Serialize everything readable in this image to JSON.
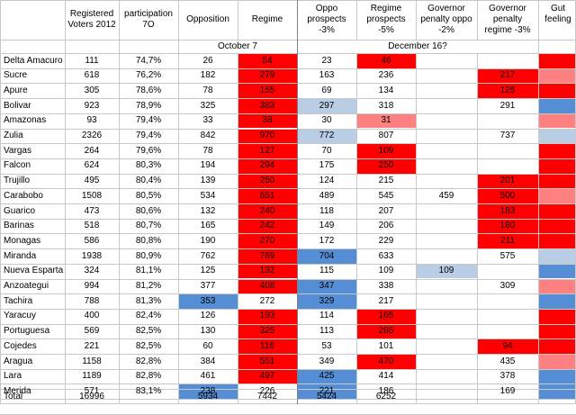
{
  "header": {
    "registered": "Registered Voters 2012",
    "participation": "participation 7O",
    "opposition": "Opposition",
    "regime": "Regime",
    "oppo_prospects": "Oppo prospects -3%",
    "regime_prospects": "Regime prospects -5%",
    "gov_penalty_oppo": "Governor penalty oppo -2%",
    "gov_penalty_regime": "Governor penalty regime -3%",
    "gut_feeling": "Gut feeling",
    "date_oct": "October 7",
    "date_dec": "December 16?"
  },
  "colors": {
    "red": "#ff0000",
    "light_red": "#ff8080",
    "blue": "#558ed5",
    "light_blue": "#b9cde5",
    "grid": "#c8c8c8"
  },
  "rows": [
    {
      "state": "Delta Amacuro",
      "reg": "111",
      "part": "74,7%",
      "opp": "26",
      "reg7": "54",
      "oppo3": "23",
      "regime5": "46",
      "gov_opp": "",
      "gov_reg": "",
      "cOpp": "",
      "cReg7": "red",
      "cOppo3": "",
      "cRegime5": "red",
      "cGovOpp": "",
      "cGovReg": "",
      "cGut": "red"
    },
    {
      "state": "Sucre",
      "reg": "618",
      "part": "76,2%",
      "opp": "182",
      "reg7": "279",
      "oppo3": "163",
      "regime5": "236",
      "gov_opp": "",
      "gov_reg": "217",
      "cOpp": "",
      "cReg7": "red",
      "cOppo3": "",
      "cRegime5": "",
      "cGovOpp": "",
      "cGovReg": "red",
      "cGut": "light_red"
    },
    {
      "state": "Apure",
      "reg": "305",
      "part": "78,6%",
      "opp": "78",
      "reg7": "155",
      "oppo3": "69",
      "regime5": "134",
      "gov_opp": "",
      "gov_reg": "125",
      "cOpp": "",
      "cReg7": "red",
      "cOppo3": "",
      "cRegime5": "",
      "cGovOpp": "",
      "cGovReg": "red",
      "cGut": "red"
    },
    {
      "state": "Bolivar",
      "reg": "923",
      "part": "78,9%",
      "opp": "325",
      "reg7": "383",
      "oppo3": "297",
      "regime5": "318",
      "gov_opp": "",
      "gov_reg": "291",
      "cOpp": "",
      "cReg7": "red",
      "cOppo3": "light_blue",
      "cRegime5": "",
      "cGovOpp": "",
      "cGovReg": "",
      "cGut": "blue"
    },
    {
      "state": "Amazonas",
      "reg": "93",
      "part": "79,4%",
      "opp": "33",
      "reg7": "38",
      "oppo3": "30",
      "regime5": "31",
      "gov_opp": "",
      "gov_reg": "",
      "cOpp": "",
      "cReg7": "red",
      "cOppo3": "",
      "cRegime5": "light_red",
      "cGovOpp": "",
      "cGovReg": "",
      "cGut": "light_red"
    },
    {
      "state": "Zulia",
      "reg": "2326",
      "part": "79,4%",
      "opp": "842",
      "reg7": "970",
      "oppo3": "772",
      "regime5": "807",
      "gov_opp": "",
      "gov_reg": "737",
      "cOpp": "",
      "cReg7": "red",
      "cOppo3": "light_blue",
      "cRegime5": "",
      "cGovOpp": "",
      "cGovReg": "",
      "cGut": "light_blue"
    },
    {
      "state": "Vargas",
      "reg": "264",
      "part": "79,6%",
      "opp": "78",
      "reg7": "127",
      "oppo3": "70",
      "regime5": "109",
      "gov_opp": "",
      "gov_reg": "",
      "cOpp": "",
      "cReg7": "red",
      "cOppo3": "",
      "cRegime5": "red",
      "cGovOpp": "",
      "cGovReg": "",
      "cGut": "red"
    },
    {
      "state": "Falcon",
      "reg": "624",
      "part": "80,3%",
      "opp": "194",
      "reg7": "294",
      "oppo3": "175",
      "regime5": "250",
      "gov_opp": "",
      "gov_reg": "",
      "cOpp": "",
      "cReg7": "red",
      "cOppo3": "",
      "cRegime5": "red",
      "cGovOpp": "",
      "cGovReg": "",
      "cGut": "red"
    },
    {
      "state": "Trujillo",
      "reg": "495",
      "part": "80,4%",
      "opp": "139",
      "reg7": "250",
      "oppo3": "124",
      "regime5": "215",
      "gov_opp": "",
      "gov_reg": "201",
      "cOpp": "",
      "cReg7": "red",
      "cOppo3": "",
      "cRegime5": "",
      "cGovOpp": "",
      "cGovReg": "red",
      "cGut": "red"
    },
    {
      "state": "Carabobo",
      "reg": "1508",
      "part": "80,5%",
      "opp": "534",
      "reg7": "651",
      "oppo3": "489",
      "regime5": "545",
      "gov_opp": "459",
      "gov_reg": "500",
      "cOpp": "",
      "cReg7": "red",
      "cOppo3": "",
      "cRegime5": "",
      "cGovOpp": "",
      "cGovReg": "red",
      "cGut": "light_red"
    },
    {
      "state": "Guarico",
      "reg": "473",
      "part": "80,6%",
      "opp": "132",
      "reg7": "240",
      "oppo3": "118",
      "regime5": "207",
      "gov_opp": "",
      "gov_reg": "183",
      "cOpp": "",
      "cReg7": "red",
      "cOppo3": "",
      "cRegime5": "",
      "cGovOpp": "",
      "cGovReg": "red",
      "cGut": "red"
    },
    {
      "state": "Barinas",
      "reg": "518",
      "part": "80,7%",
      "opp": "165",
      "reg7": "242",
      "oppo3": "149",
      "regime5": "206",
      "gov_opp": "",
      "gov_reg": "180",
      "cOpp": "",
      "cReg7": "red",
      "cOppo3": "",
      "cRegime5": "",
      "cGovOpp": "",
      "cGovReg": "red",
      "cGut": "red"
    },
    {
      "state": "Monagas",
      "reg": "586",
      "part": "80,8%",
      "opp": "190",
      "reg7": "270",
      "oppo3": "172",
      "regime5": "229",
      "gov_opp": "",
      "gov_reg": "211",
      "cOpp": "",
      "cReg7": "red",
      "cOppo3": "",
      "cRegime5": "",
      "cGovOpp": "",
      "cGovReg": "red",
      "cGut": "red"
    },
    {
      "state": "Miranda",
      "reg": "1938",
      "part": "80,9%",
      "opp": "762",
      "reg7": "769",
      "oppo3": "704",
      "regime5": "633",
      "gov_opp": "",
      "gov_reg": "575",
      "cOpp": "",
      "cReg7": "red",
      "cOppo3": "blue",
      "cRegime5": "",
      "cGovOpp": "",
      "cGovReg": "",
      "cGut": "light_blue"
    },
    {
      "state": "Nueva Esparta",
      "reg": "324",
      "part": "81,1%",
      "opp": "125",
      "reg7": "132",
      "oppo3": "115",
      "regime5": "109",
      "gov_opp": "109",
      "gov_reg": "",
      "cOpp": "",
      "cReg7": "red",
      "cOppo3": "",
      "cRegime5": "",
      "cGovOpp": "light_blue",
      "cGovReg": "",
      "cGut": "blue"
    },
    {
      "state": "Anzoategui",
      "reg": "994",
      "part": "81,2%",
      "opp": "377",
      "reg7": "408",
      "oppo3": "347",
      "regime5": "338",
      "gov_opp": "",
      "gov_reg": "309",
      "cOpp": "",
      "cReg7": "red",
      "cOppo3": "blue",
      "cRegime5": "",
      "cGovOpp": "",
      "cGovReg": "",
      "cGut": "light_red"
    },
    {
      "state": "Tachira",
      "reg": "788",
      "part": "81,3%",
      "opp": "353",
      "reg7": "272",
      "oppo3": "329",
      "regime5": "217",
      "gov_opp": "",
      "gov_reg": "",
      "cOpp": "blue",
      "cReg7": "",
      "cOppo3": "blue",
      "cRegime5": "",
      "cGovOpp": "",
      "cGovReg": "",
      "cGut": "blue"
    },
    {
      "state": "Yaracuy",
      "reg": "400",
      "part": "82,4%",
      "opp": "126",
      "reg7": "193",
      "oppo3": "114",
      "regime5": "165",
      "gov_opp": "",
      "gov_reg": "",
      "cOpp": "",
      "cReg7": "red",
      "cOppo3": "",
      "cRegime5": "red",
      "cGovOpp": "",
      "cGovReg": "",
      "cGut": "red"
    },
    {
      "state": "Portuguesa",
      "reg": "569",
      "part": "82,5%",
      "opp": "130",
      "reg7": "325",
      "oppo3": "113",
      "regime5": "285",
      "gov_opp": "",
      "gov_reg": "",
      "cOpp": "",
      "cReg7": "red",
      "cOppo3": "",
      "cRegime5": "red",
      "cGovOpp": "",
      "cGovReg": "",
      "cGut": "red"
    },
    {
      "state": "Cojedes",
      "reg": "221",
      "part": "82,5%",
      "opp": "60",
      "reg7": "116",
      "oppo3": "53",
      "regime5": "101",
      "gov_opp": "",
      "gov_reg": "94",
      "cOpp": "",
      "cReg7": "red",
      "cOppo3": "",
      "cRegime5": "",
      "cGovOpp": "",
      "cGovReg": "red",
      "cGut": "red"
    },
    {
      "state": "Aragua",
      "reg": "1158",
      "part": "82,8%",
      "opp": "384",
      "reg7": "551",
      "oppo3": "349",
      "regime5": "470",
      "gov_opp": "",
      "gov_reg": "435",
      "cOpp": "",
      "cReg7": "red",
      "cOppo3": "",
      "cRegime5": "red",
      "cGovOpp": "",
      "cGovReg": "",
      "cGut": "light_red"
    },
    {
      "state": "Lara",
      "reg": "1189",
      "part": "82,8%",
      "opp": "461",
      "reg7": "497",
      "oppo3": "425",
      "regime5": "414",
      "gov_opp": "",
      "gov_reg": "378",
      "cOpp": "",
      "cReg7": "red",
      "cOppo3": "blue",
      "cRegime5": "",
      "cGovOpp": "",
      "cGovReg": "",
      "cGut": "blue"
    },
    {
      "state": "Merida",
      "reg": "571",
      "part": "83,1%",
      "opp": "238",
      "reg7": "226",
      "oppo3": "221",
      "regime5": "186",
      "gov_opp": "",
      "gov_reg": "169",
      "cOpp": "blue",
      "cReg7": "",
      "cOppo3": "blue",
      "cRegime5": "",
      "cGovOpp": "",
      "cGovReg": "",
      "cGut": "blue"
    }
  ],
  "total": {
    "label": "Total",
    "reg": "16996",
    "opp": "5934",
    "reg7": "7442",
    "oppo3": "5424",
    "regime5": "6252"
  }
}
